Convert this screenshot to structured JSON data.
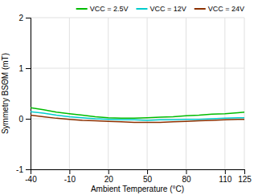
{
  "chart_data": {
    "type": "line",
    "xlabel": "Ambient Temperature (°C)",
    "ylabel": "Symmetry BSΘM (mT)",
    "x": [
      -40,
      -30,
      -20,
      -10,
      0,
      10,
      20,
      30,
      40,
      50,
      60,
      70,
      80,
      90,
      100,
      110,
      120,
      125
    ],
    "series": [
      {
        "name": "VCC = 2.5V",
        "color": "#00bb00",
        "values": [
          0.22,
          0.18,
          0.13,
          0.1,
          0.07,
          0.04,
          0.02,
          0.01,
          0.01,
          0.02,
          0.03,
          0.04,
          0.06,
          0.07,
          0.09,
          0.1,
          0.12,
          0.13
        ]
      },
      {
        "name": "VCC = 12V",
        "color": "#00cccc",
        "values": [
          0.14,
          0.11,
          0.07,
          0.04,
          0.02,
          0.0,
          -0.01,
          -0.02,
          -0.02,
          -0.03,
          -0.02,
          -0.02,
          -0.01,
          -0.01,
          0.0,
          0.01,
          0.02,
          0.02
        ]
      },
      {
        "name": "VCC = 24V",
        "color": "#8B3000",
        "values": [
          0.07,
          0.04,
          0.01,
          -0.01,
          -0.03,
          -0.04,
          -0.05,
          -0.06,
          -0.07,
          -0.07,
          -0.07,
          -0.06,
          -0.05,
          -0.04,
          -0.03,
          -0.02,
          -0.01,
          -0.01
        ]
      }
    ],
    "xlim": [
      -40,
      125
    ],
    "ylim": [
      -1,
      2
    ],
    "xticks": [
      -40,
      -10,
      20,
      50,
      80,
      110,
      125
    ],
    "yticks": [
      -1,
      0,
      1,
      2
    ],
    "grid": true,
    "legend": "upper right"
  }
}
